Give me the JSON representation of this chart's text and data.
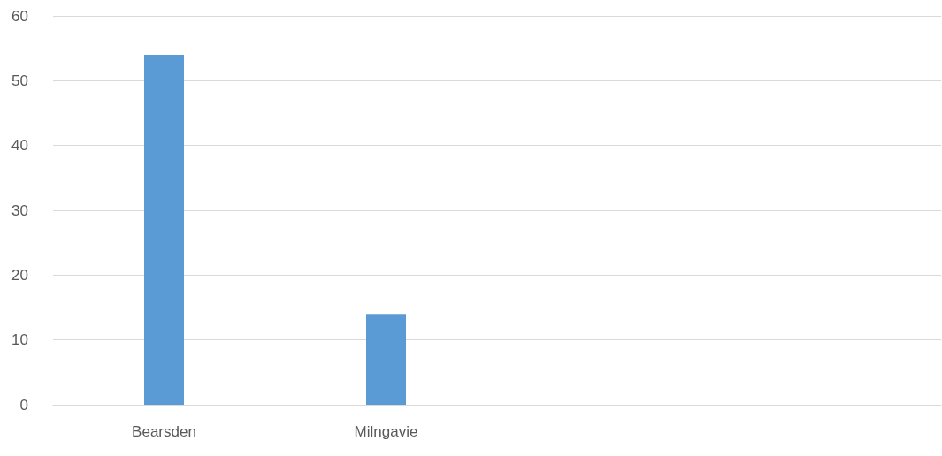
{
  "chart_data": {
    "type": "bar",
    "categories": [
      "Bearsden",
      "Milngavie",
      null,
      null
    ],
    "values": [
      54,
      14,
      null,
      null
    ],
    "color": "#5b9bd5",
    "ylim": [
      0,
      60
    ],
    "yticks": [
      0,
      10,
      20,
      30,
      40,
      50,
      60
    ],
    "grid": "y"
  }
}
